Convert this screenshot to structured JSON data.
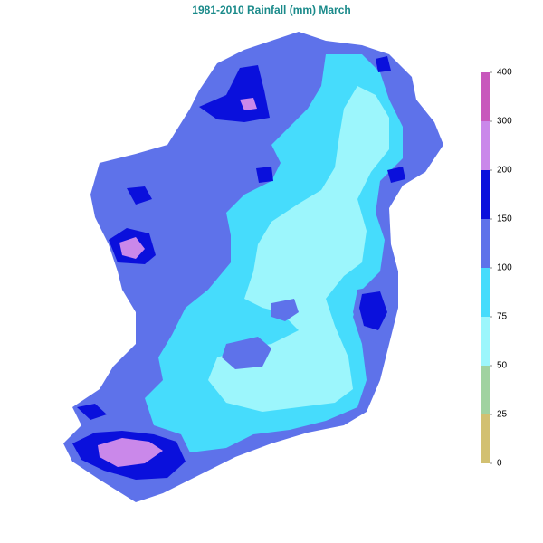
{
  "title": "1981-2010 Rainfall (mm) March",
  "legend": {
    "ticks": [
      0,
      25,
      50,
      75,
      100,
      150,
      200,
      300,
      400
    ],
    "colors": [
      "#d2c071",
      "#a0d2a0",
      "#9cf6fc",
      "#46dcfc",
      "#5e72ea",
      "#0a10dc",
      "#ca88ea",
      "#c858bc"
    ]
  }
}
